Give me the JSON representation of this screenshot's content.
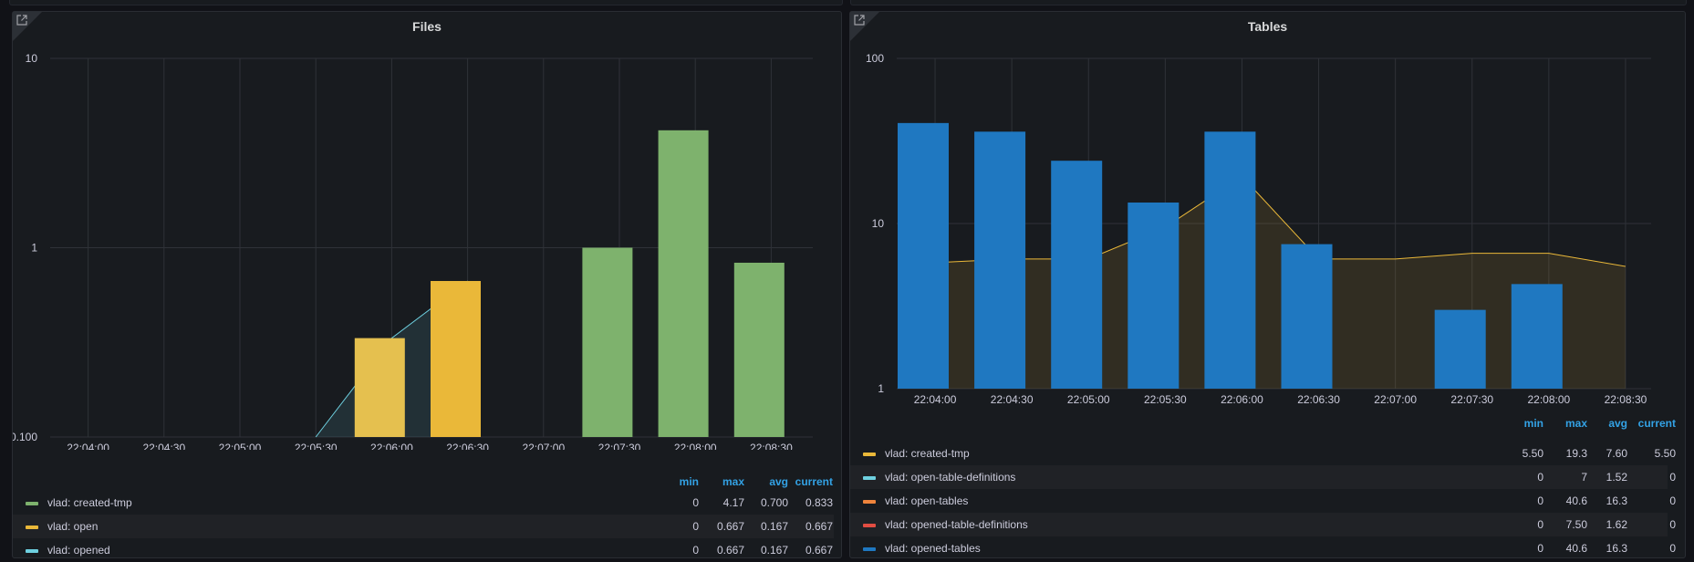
{
  "panels": {
    "files": {
      "title": "Files",
      "y_axis": {
        "scale": "log",
        "ticks": [
          "10",
          "1",
          "0.100"
        ]
      },
      "x_axis": {
        "ticks": [
          "22:04:00",
          "22:04:30",
          "22:05:00",
          "22:05:30",
          "22:06:00",
          "22:06:30",
          "22:07:00",
          "22:07:30",
          "22:08:00",
          "22:08:30"
        ]
      },
      "legend": {
        "headers": {
          "min": "min",
          "max": "max",
          "avg": "avg",
          "current": "current"
        },
        "rows": [
          {
            "name": "vlad: created-tmp",
            "color": "#7eb26d",
            "min": "0",
            "max": "4.17",
            "avg": "0.700",
            "current": "0.833"
          },
          {
            "name": "vlad: open",
            "color": "#eab839",
            "min": "0",
            "max": "0.667",
            "avg": "0.167",
            "current": "0.667"
          },
          {
            "name": "vlad: opened",
            "color": "#6ed0e0",
            "min": "0",
            "max": "0.667",
            "avg": "0.167",
            "current": "0.667"
          }
        ]
      }
    },
    "tables": {
      "title": "Tables",
      "y_axis": {
        "scale": "log",
        "ticks": [
          "100",
          "10",
          "1"
        ]
      },
      "x_axis": {
        "ticks": [
          "22:04:00",
          "22:04:30",
          "22:05:00",
          "22:05:30",
          "22:06:00",
          "22:06:30",
          "22:07:00",
          "22:07:30",
          "22:08:00",
          "22:08:30"
        ]
      },
      "legend": {
        "headers": {
          "min": "min",
          "max": "max",
          "avg": "avg",
          "current": "current"
        },
        "rows": [
          {
            "name": "vlad: created-tmp",
            "color": "#eab839",
            "min": "5.50",
            "max": "19.3",
            "avg": "7.60",
            "current": "5.50"
          },
          {
            "name": "vlad: open-table-definitions",
            "color": "#6ed0e0",
            "min": "0",
            "max": "7",
            "avg": "1.52",
            "current": "0"
          },
          {
            "name": "vlad: open-tables",
            "color": "#ef843c",
            "min": "0",
            "max": "40.6",
            "avg": "16.3",
            "current": "0"
          },
          {
            "name": "vlad: opened-table-definitions",
            "color": "#e24d42",
            "min": "0",
            "max": "7.50",
            "avg": "1.62",
            "current": "0"
          },
          {
            "name": "vlad: opened-tables",
            "color": "#1f78c1",
            "min": "0",
            "max": "40.6",
            "avg": "16.3",
            "current": "0"
          }
        ]
      }
    }
  },
  "chart_data": [
    {
      "type": "bar",
      "title": "Files",
      "yscale": "log",
      "ylim": [
        0.1,
        10
      ],
      "categories": [
        "22:04:00",
        "22:04:30",
        "22:05:00",
        "22:05:30",
        "22:06:00",
        "22:06:30",
        "22:07:00",
        "22:07:30",
        "22:08:00",
        "22:08:30"
      ],
      "series": [
        {
          "name": "vlad: open",
          "kind": "bar",
          "color": "#eab839",
          "points": [
            {
              "x": "22:06:00",
              "y": 0.333,
              "color": "#e5c04f"
            },
            {
              "x": "22:06:30",
              "y": 0.667
            }
          ]
        },
        {
          "name": "vlad: created-tmp",
          "kind": "bar",
          "color": "#7eb26d",
          "points": [
            {
              "x": "22:07:30",
              "y": 1.0
            },
            {
              "x": "22:08:00",
              "y": 4.17
            },
            {
              "x": "22:08:30",
              "y": 0.833
            }
          ]
        },
        {
          "name": "vlad: opened",
          "kind": "area",
          "color": "#6ed0e0",
          "points": [
            {
              "x": "22:05:30",
              "y": 0.1
            },
            {
              "x": "22:06:00",
              "y": 0.333
            },
            {
              "x": "22:06:30",
              "y": 0.667
            }
          ]
        }
      ]
    },
    {
      "type": "bar",
      "title": "Tables",
      "yscale": "log",
      "ylim": [
        1,
        100
      ],
      "categories": [
        "22:04:00",
        "22:04:30",
        "22:05:00",
        "22:05:30",
        "22:06:00",
        "22:06:30",
        "22:07:00",
        "22:07:30",
        "22:08:00",
        "22:08:30"
      ],
      "series": [
        {
          "name": "vlad: opened-tables",
          "kind": "bar",
          "color": "#1f78c1",
          "points": [
            {
              "x": "22:04:00",
              "y": 40.6
            },
            {
              "x": "22:04:30",
              "y": 36
            },
            {
              "x": "22:05:00",
              "y": 24
            },
            {
              "x": "22:05:30",
              "y": 13.4
            },
            {
              "x": "22:06:00",
              "y": 36
            },
            {
              "x": "22:06:30",
              "y": 7.5
            },
            {
              "x": "22:07:30",
              "y": 3
            },
            {
              "x": "22:08:00",
              "y": 4.3
            }
          ]
        },
        {
          "name": "vlad: created-tmp",
          "kind": "area",
          "color": "#eab839",
          "points": [
            {
              "x": "22:04:00",
              "y": 5.8
            },
            {
              "x": "22:04:30",
              "y": 6.1
            },
            {
              "x": "22:05:00",
              "y": 6.1
            },
            {
              "x": "22:05:30",
              "y": 9.5
            },
            {
              "x": "22:06:00",
              "y": 19.3
            },
            {
              "x": "22:06:30",
              "y": 6.1
            },
            {
              "x": "22:07:00",
              "y": 6.1
            },
            {
              "x": "22:07:30",
              "y": 6.6
            },
            {
              "x": "22:08:00",
              "y": 6.6
            },
            {
              "x": "22:08:30",
              "y": 5.5
            }
          ]
        }
      ]
    }
  ]
}
